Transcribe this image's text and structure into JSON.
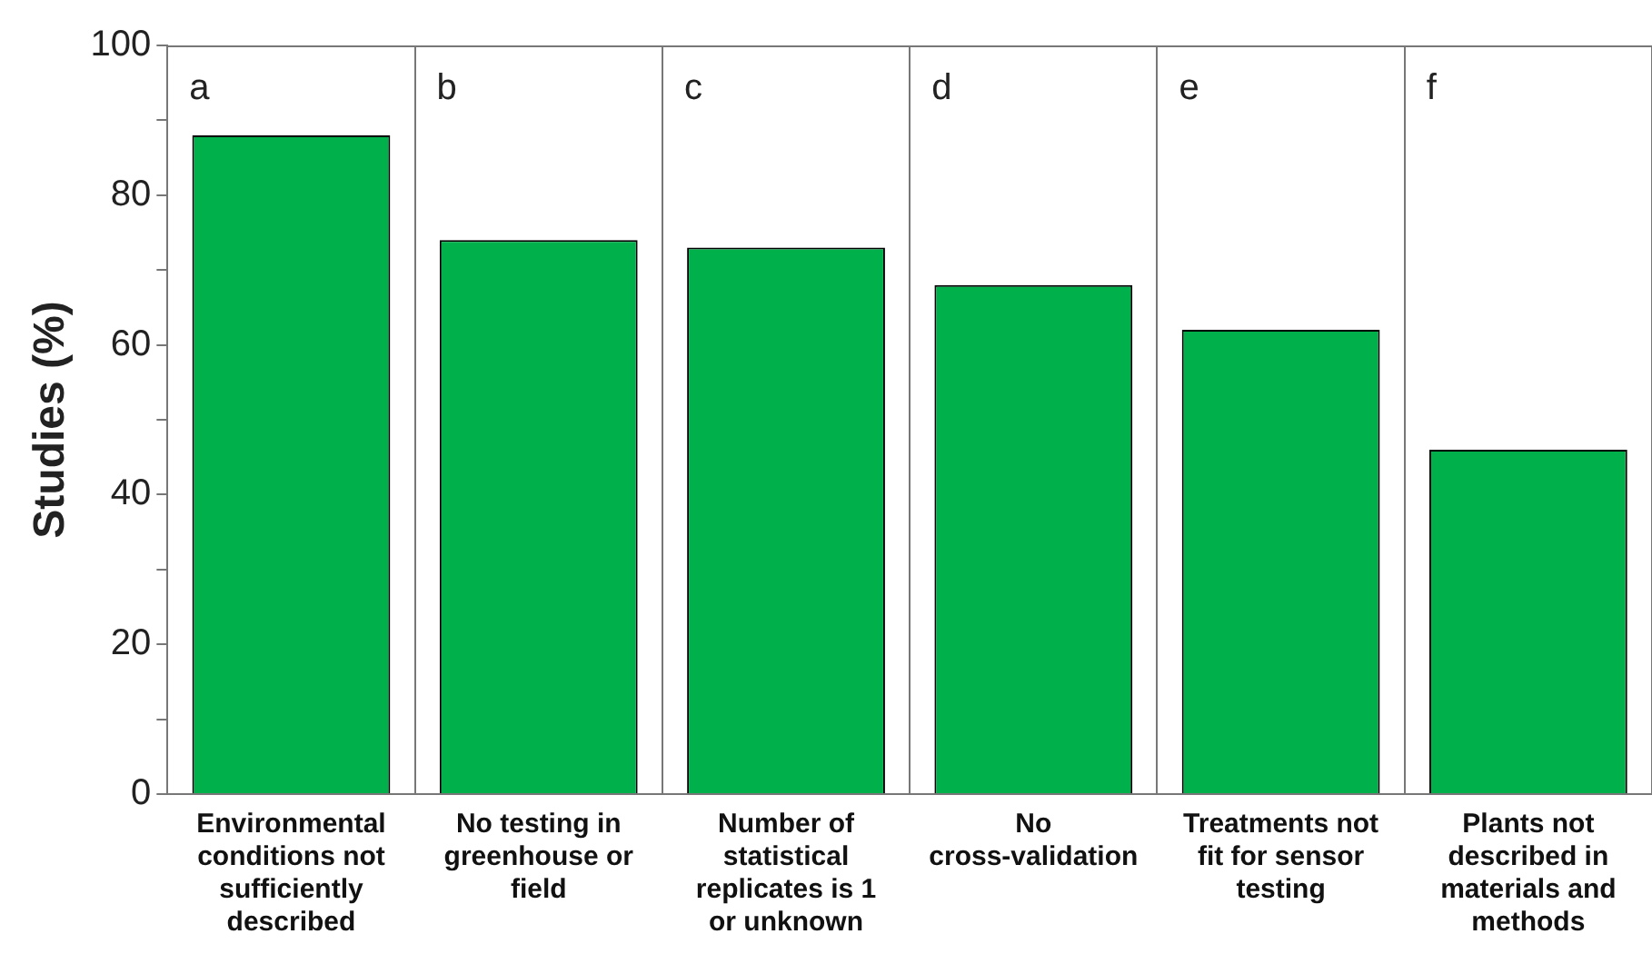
{
  "chart_data": {
    "type": "bar",
    "ylabel": "Studies (%)",
    "categories": [
      "Environmental conditions not sufficiently described",
      "No testing in greenhouse or field",
      "Number of statistical replicates is 1 or unknown",
      "No cross-validation",
      "Treatments not fit for sensor testing",
      "Plants not described in materials and methods"
    ],
    "values": [
      88,
      74,
      73,
      68,
      62,
      46
    ],
    "color": "#00b04b",
    "ylim": [
      0,
      100
    ],
    "yticks": [
      0,
      {
        "value": 10,
        "label": null
      },
      20,
      {
        "value": 30,
        "label": null
      },
      40,
      {
        "value": 50,
        "label": null
      },
      60,
      {
        "value": 70,
        "label": null
      },
      80,
      {
        "value": 90,
        "label": null
      },
      100
    ],
    "grid": "x",
    "annotations": [
      "a",
      "b",
      "c",
      "d",
      "e",
      "f"
    ]
  }
}
